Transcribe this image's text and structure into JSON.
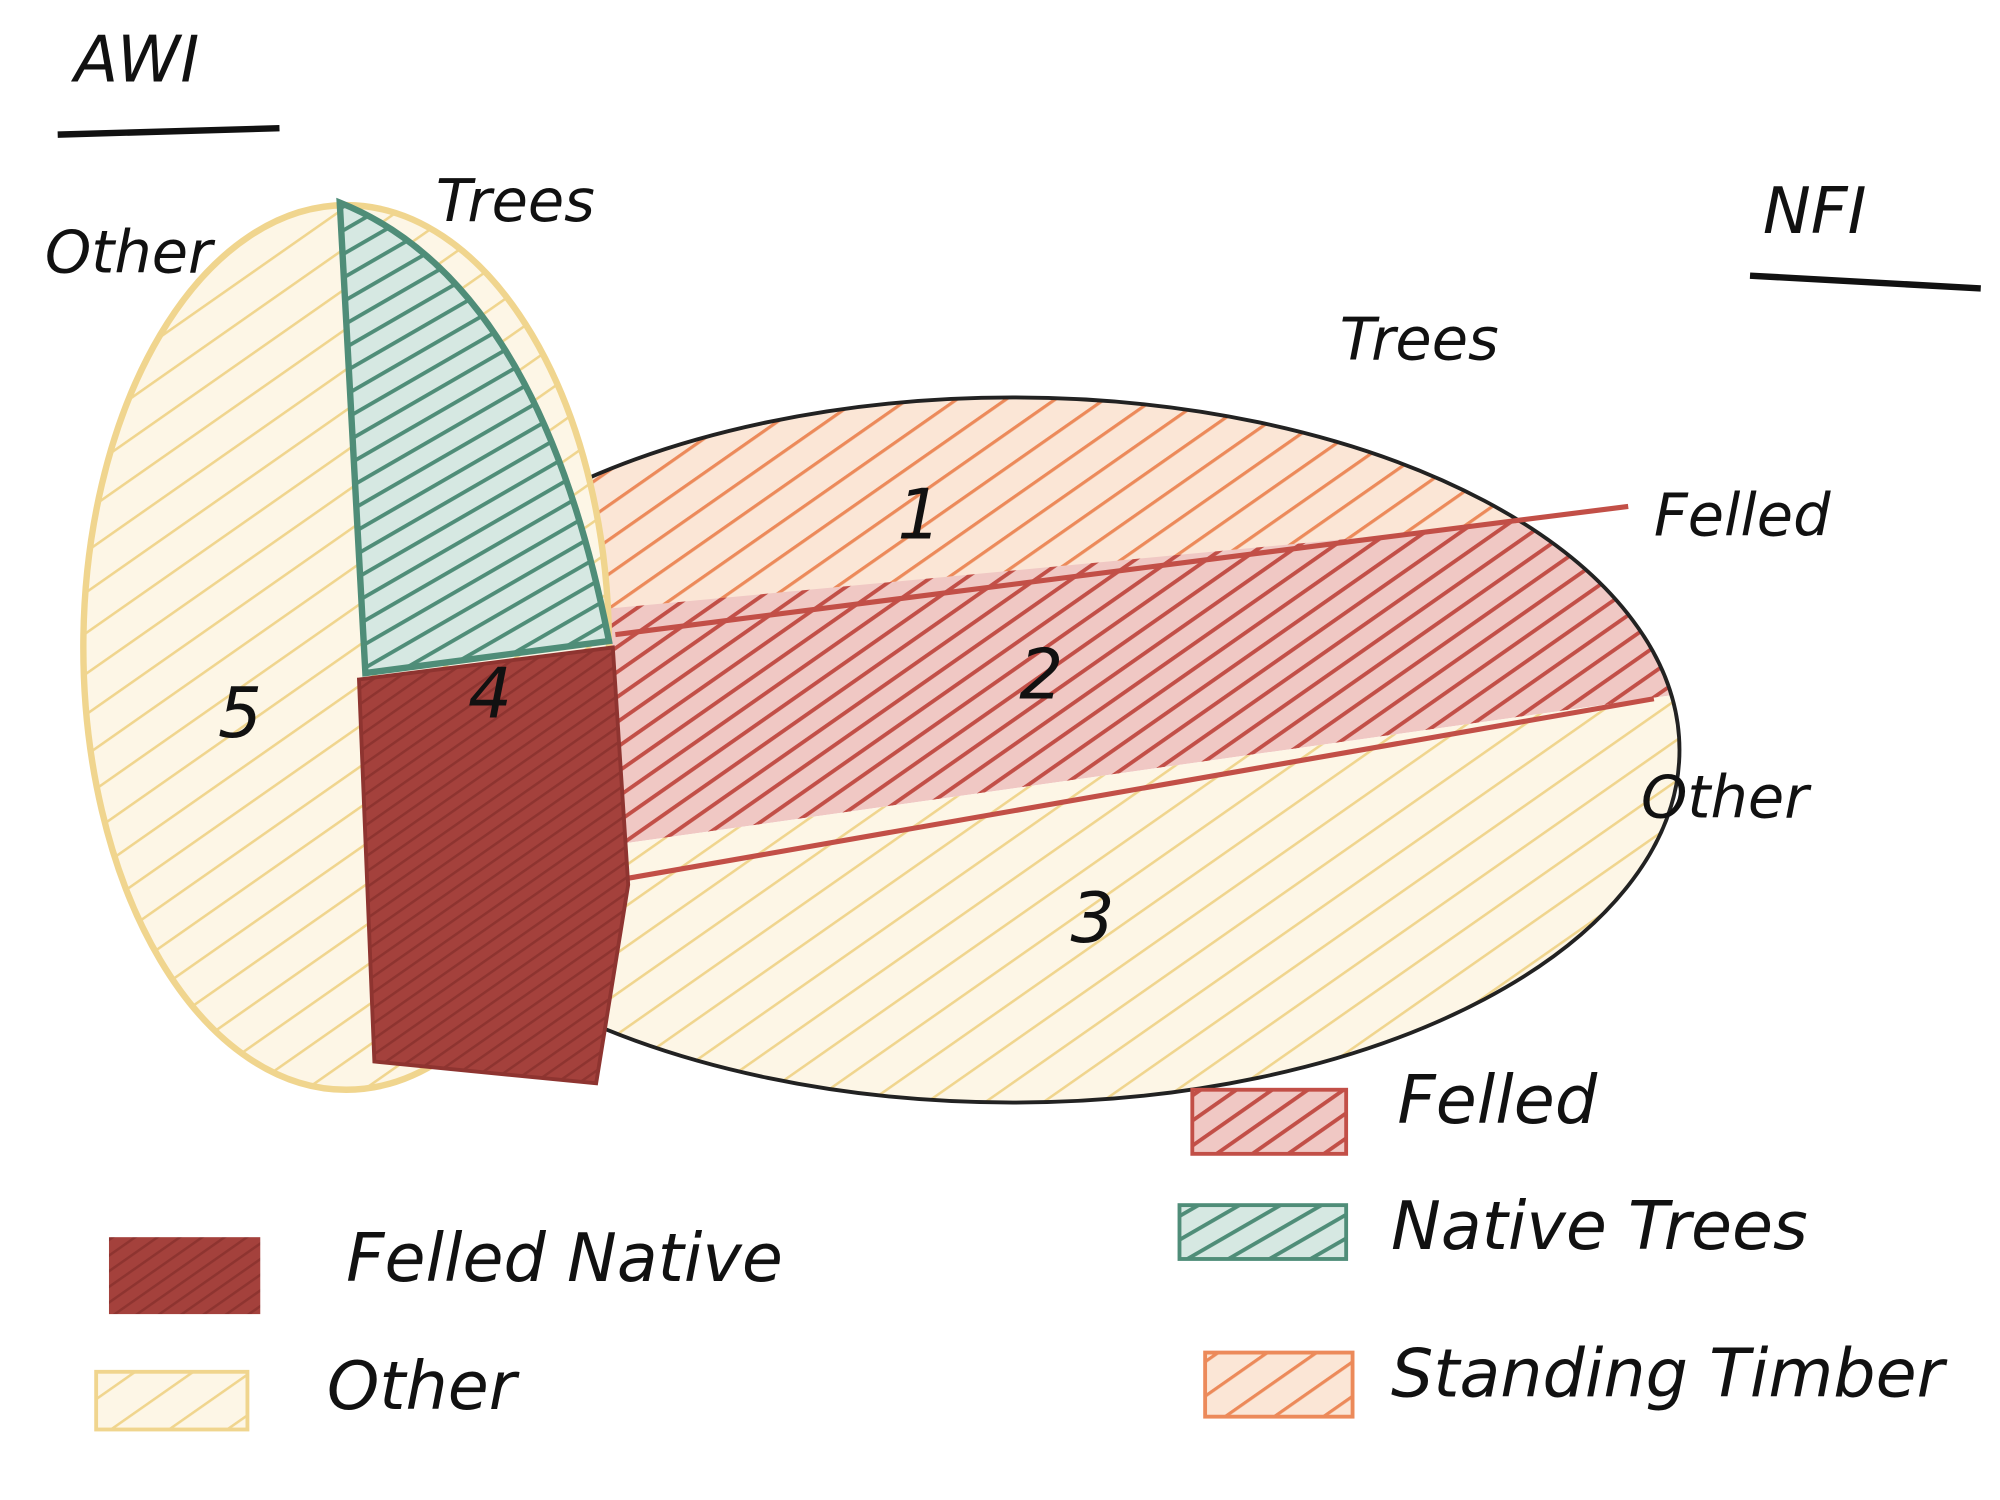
{
  "awi": {
    "title": "AWI",
    "labels": {
      "other": "Other",
      "trees": "Trees"
    }
  },
  "nfi": {
    "title": "NFI",
    "labels": {
      "trees": "Trees",
      "felled": "Felled",
      "other": "Other"
    }
  },
  "regions": [
    "1",
    "2",
    "3",
    "4",
    "5"
  ],
  "legend_awi": [
    {
      "label": "Felled Native"
    },
    {
      "label": "Other"
    }
  ],
  "legend_nfi": [
    {
      "label": "Felled"
    },
    {
      "label": "Native Trees"
    },
    {
      "label": "Standing Timber"
    }
  ]
}
